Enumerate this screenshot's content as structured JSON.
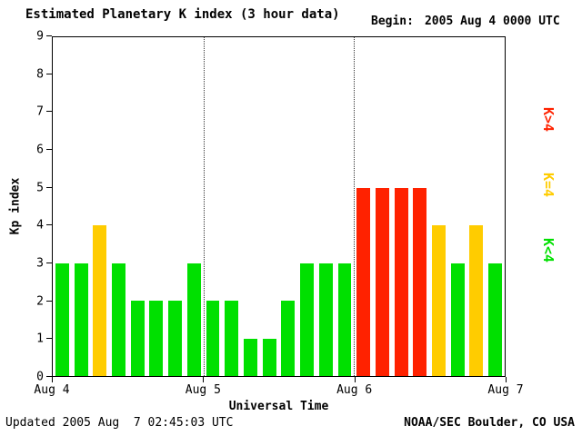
{
  "header": {
    "title": "Estimated Planetary K index (3 hour data)",
    "begin_label": "Begin:",
    "begin_value": "2005 Aug 4 0000 UTC"
  },
  "chart_data": {
    "type": "bar",
    "title": "Estimated Planetary K index (3 hour data)",
    "xlabel": "Universal Time",
    "ylabel": "Kp index",
    "ylim": [
      0,
      9
    ],
    "y_ticks": [
      0,
      1,
      2,
      3,
      4,
      5,
      6,
      7,
      8,
      9
    ],
    "x_tick_labels": [
      "Aug 4",
      "Aug 5",
      "Aug 6",
      "Aug 7"
    ],
    "hours_per_bar": 3,
    "begin_time": "2005 Aug 4 0000 UTC",
    "values": [
      3,
      3,
      4,
      3,
      2,
      2,
      2,
      3,
      2,
      2,
      1,
      1,
      2,
      3,
      3,
      3,
      5,
      5,
      5,
      5,
      4,
      3,
      4,
      3
    ],
    "colors": {
      "below4": "#00e000",
      "equal4": "#ffcc00",
      "above4": "#ff2200"
    },
    "grid": "dotted vertical day dividers",
    "legend_position": "right"
  },
  "legend": {
    "items": [
      {
        "label": "K>4",
        "color": "#ff2200"
      },
      {
        "label": "K=4",
        "color": "#ffcc00"
      },
      {
        "label": "K<4",
        "color": "#00e000"
      }
    ]
  },
  "footer": {
    "updated": "Updated 2005 Aug  7 02:45:03 UTC",
    "credit": "NOAA/SEC Boulder, CO USA"
  }
}
